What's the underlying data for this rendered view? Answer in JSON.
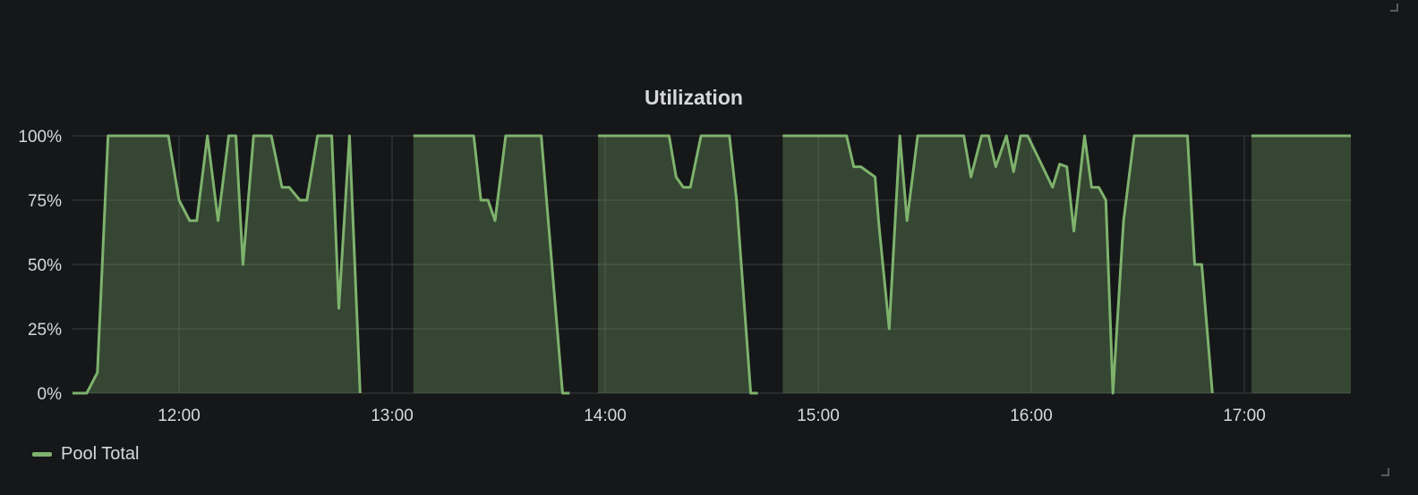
{
  "colors": {
    "series": "#7eb26d",
    "background": "#161719",
    "grid": "#3b3c3f",
    "text": "#d8d9da"
  },
  "chart_data": {
    "type": "line",
    "title": "Utilization",
    "xlabel": "",
    "ylabel": "",
    "x_range": [
      "11:30",
      "17:30"
    ],
    "ylim": [
      0,
      100
    ],
    "y_ticks": [
      "0%",
      "25%",
      "50%",
      "75%",
      "100%"
    ],
    "x_ticks": [
      "12:00",
      "13:00",
      "14:00",
      "15:00",
      "16:00",
      "17:00"
    ],
    "grid": true,
    "fill": true,
    "legend_position": "bottom-left",
    "series": [
      {
        "name": "Pool Total",
        "segments": [
          [
            [
              "11:30",
              0
            ],
            [
              "11:34",
              0
            ],
            [
              "11:37",
              8
            ],
            [
              "11:40",
              100
            ],
            [
              "11:57",
              100
            ],
            [
              "12:00",
              75
            ],
            [
              "12:03",
              67
            ],
            [
              "12:05",
              67
            ],
            [
              "12:08",
              100
            ],
            [
              "12:11",
              67
            ],
            [
              "12:14",
              100
            ],
            [
              "12:16",
              100
            ],
            [
              "12:18",
              50
            ],
            [
              "12:21",
              100
            ],
            [
              "12:26",
              100
            ],
            [
              "12:29",
              80
            ],
            [
              "12:31",
              80
            ],
            [
              "12:34",
              75
            ],
            [
              "12:36",
              75
            ],
            [
              "12:39",
              100
            ],
            [
              "12:43",
              100
            ],
            [
              "12:45",
              33
            ],
            [
              "12:48",
              100
            ],
            [
              "12:51",
              0
            ]
          ],
          [
            [
              "13:06",
              100
            ],
            [
              "13:23",
              100
            ],
            [
              "13:25",
              75
            ],
            [
              "13:27",
              75
            ],
            [
              "13:29",
              67
            ],
            [
              "13:32",
              100
            ],
            [
              "13:42",
              100
            ],
            [
              "13:48",
              0
            ],
            [
              "13:50",
              0
            ]
          ],
          [
            [
              "13:58",
              100
            ],
            [
              "14:18",
              100
            ],
            [
              "14:20",
              84
            ],
            [
              "14:22",
              80
            ],
            [
              "14:24",
              80
            ],
            [
              "14:27",
              100
            ],
            [
              "14:35",
              100
            ],
            [
              "14:37",
              75
            ],
            [
              "14:41",
              0
            ],
            [
              "14:43",
              0
            ]
          ],
          [
            [
              "14:50",
              100
            ],
            [
              "15:08",
              100
            ],
            [
              "15:10",
              88
            ],
            [
              "15:12",
              88
            ],
            [
              "15:16",
              84
            ],
            [
              "15:17",
              67
            ],
            [
              "15:20",
              25
            ],
            [
              "15:23",
              100
            ],
            [
              "15:25",
              67
            ],
            [
              "15:28",
              100
            ],
            [
              "15:41",
              100
            ],
            [
              "15:43",
              84
            ],
            [
              "15:46",
              100
            ],
            [
              "15:48",
              100
            ],
            [
              "15:50",
              88
            ],
            [
              "15:53",
              100
            ],
            [
              "15:55",
              86
            ],
            [
              "15:57",
              100
            ],
            [
              "15:59",
              100
            ],
            [
              "16:06",
              80
            ],
            [
              "16:08",
              89
            ],
            [
              "16:10",
              88
            ],
            [
              "16:12",
              63
            ],
            [
              "16:15",
              100
            ],
            [
              "16:17",
              80
            ],
            [
              "16:19",
              80
            ],
            [
              "16:21",
              75
            ],
            [
              "16:23",
              0
            ],
            [
              "16:26",
              67
            ],
            [
              "16:29",
              100
            ],
            [
              "16:44",
              100
            ],
            [
              "16:46",
              50
            ],
            [
              "16:48",
              50
            ],
            [
              "16:51",
              0
            ]
          ],
          [
            [
              "17:02",
              100
            ],
            [
              "17:30",
              100
            ]
          ]
        ]
      }
    ]
  }
}
